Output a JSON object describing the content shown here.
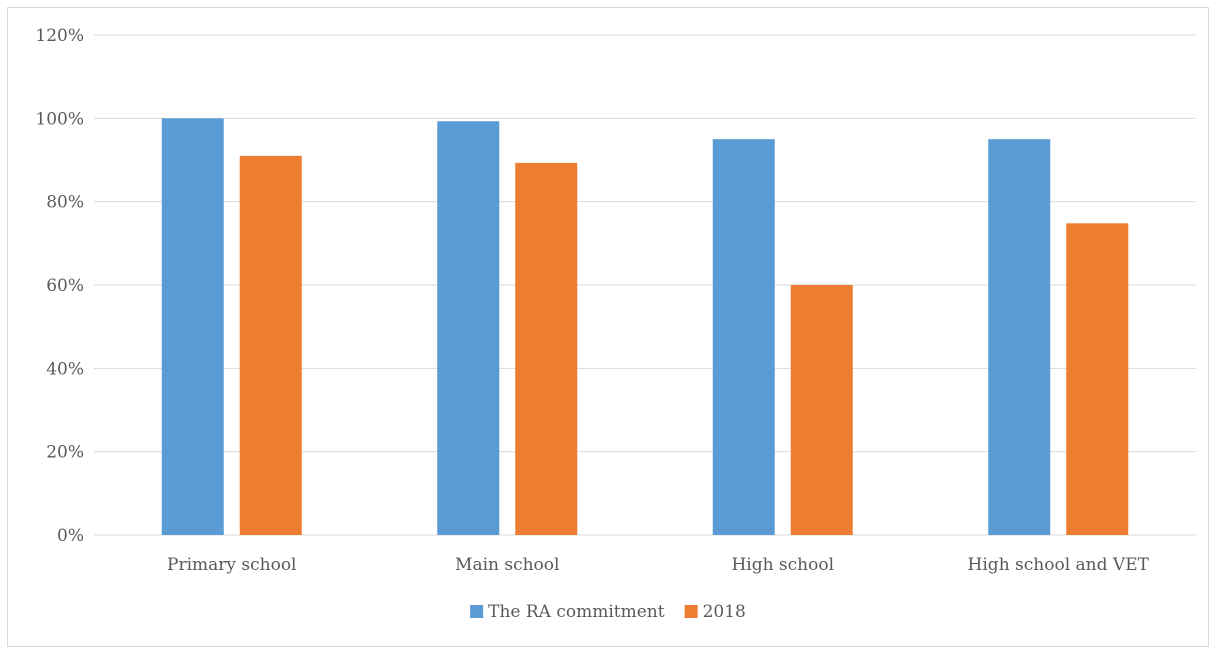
{
  "chart_data": {
    "type": "bar",
    "title": "",
    "xlabel": "",
    "ylabel": "",
    "categories": [
      "Primary school",
      "Main school",
      "High school",
      "High school and VET"
    ],
    "series": [
      {
        "name": "The RA commitment",
        "values": [
          1.0,
          0.993,
          0.95,
          0.95
        ],
        "color": "#5b9bd5"
      },
      {
        "name": "2018",
        "values": [
          0.91,
          0.893,
          0.6,
          0.748
        ],
        "color": "#ed7d31"
      }
    ],
    "ylim": [
      0,
      1.2
    ],
    "yticks": [
      "0%",
      "20%",
      "40%",
      "60%",
      "80%",
      "100%",
      "120%"
    ],
    "grid": true,
    "legend": "bottom"
  }
}
